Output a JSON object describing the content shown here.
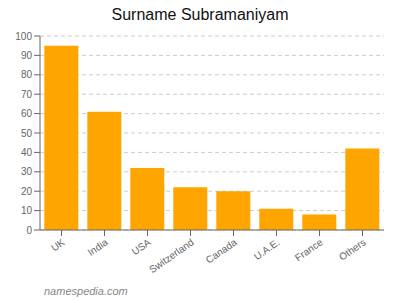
{
  "chart_data": {
    "type": "bar",
    "title": "Surname Subramaniyam",
    "categories": [
      "UK",
      "India",
      "USA",
      "Switzerland",
      "Canada",
      "U.A.E.",
      "France",
      "Others"
    ],
    "values": [
      95,
      61,
      32,
      22,
      20,
      11,
      8,
      42
    ],
    "color": "#FFA500",
    "ylim": [
      0,
      100
    ],
    "yticks": [
      0,
      10,
      20,
      30,
      40,
      50,
      60,
      70,
      80,
      90,
      100
    ],
    "grid": true,
    "annotation": "namespedia.com"
  }
}
